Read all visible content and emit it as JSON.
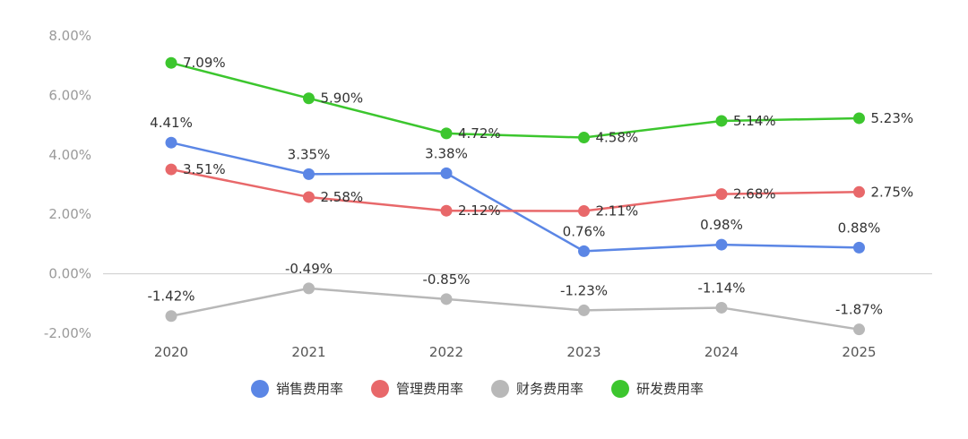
{
  "chart_data": {
    "type": "line",
    "title": "",
    "xlabel": "",
    "ylabel": "",
    "categories": [
      "2020",
      "2021",
      "2022",
      "2023",
      "2024",
      "2025"
    ],
    "ylim": [
      -2,
      8
    ],
    "yticks": [
      -2,
      0,
      2,
      4,
      6,
      8
    ],
    "ytick_labels": [
      "-2.00%",
      "0.00%",
      "2.00%",
      "4.00%",
      "6.00%",
      "8.00%"
    ],
    "grid": false,
    "legend_position": "bottom",
    "series": [
      {
        "name": "销售费用率",
        "color": "#5b86e5",
        "values": [
          4.41,
          3.35,
          3.38,
          0.76,
          0.98,
          0.88
        ],
        "labels": [
          "4.41%",
          "3.35%",
          "3.38%",
          "0.76%",
          "0.98%",
          "0.88%"
        ],
        "label_position": "above"
      },
      {
        "name": "管理费用率",
        "color": "#e8686a",
        "values": [
          3.51,
          2.58,
          2.12,
          2.11,
          2.68,
          2.75
        ],
        "labels": [
          "3.51%",
          "2.58%",
          "2.12%",
          "2.11%",
          "2.68%",
          "2.75%"
        ],
        "label_position": "right"
      },
      {
        "name": "财务费用率",
        "color": "#b8b8b8",
        "values": [
          -1.42,
          -0.49,
          -0.85,
          -1.23,
          -1.14,
          -1.87
        ],
        "labels": [
          "-1.42%",
          "-0.49%",
          "-0.85%",
          "-1.23%",
          "-1.14%",
          "-1.87%"
        ],
        "label_position": "above"
      },
      {
        "name": "研发费用率",
        "color": "#3cc62e",
        "values": [
          7.09,
          5.9,
          4.72,
          4.58,
          5.14,
          5.23
        ],
        "labels": [
          "7.09%",
          "5.90%",
          "4.72%",
          "4.58%",
          "5.14%",
          "5.23%"
        ],
        "label_position": "right"
      }
    ],
    "axis_color": "#cccccc"
  }
}
